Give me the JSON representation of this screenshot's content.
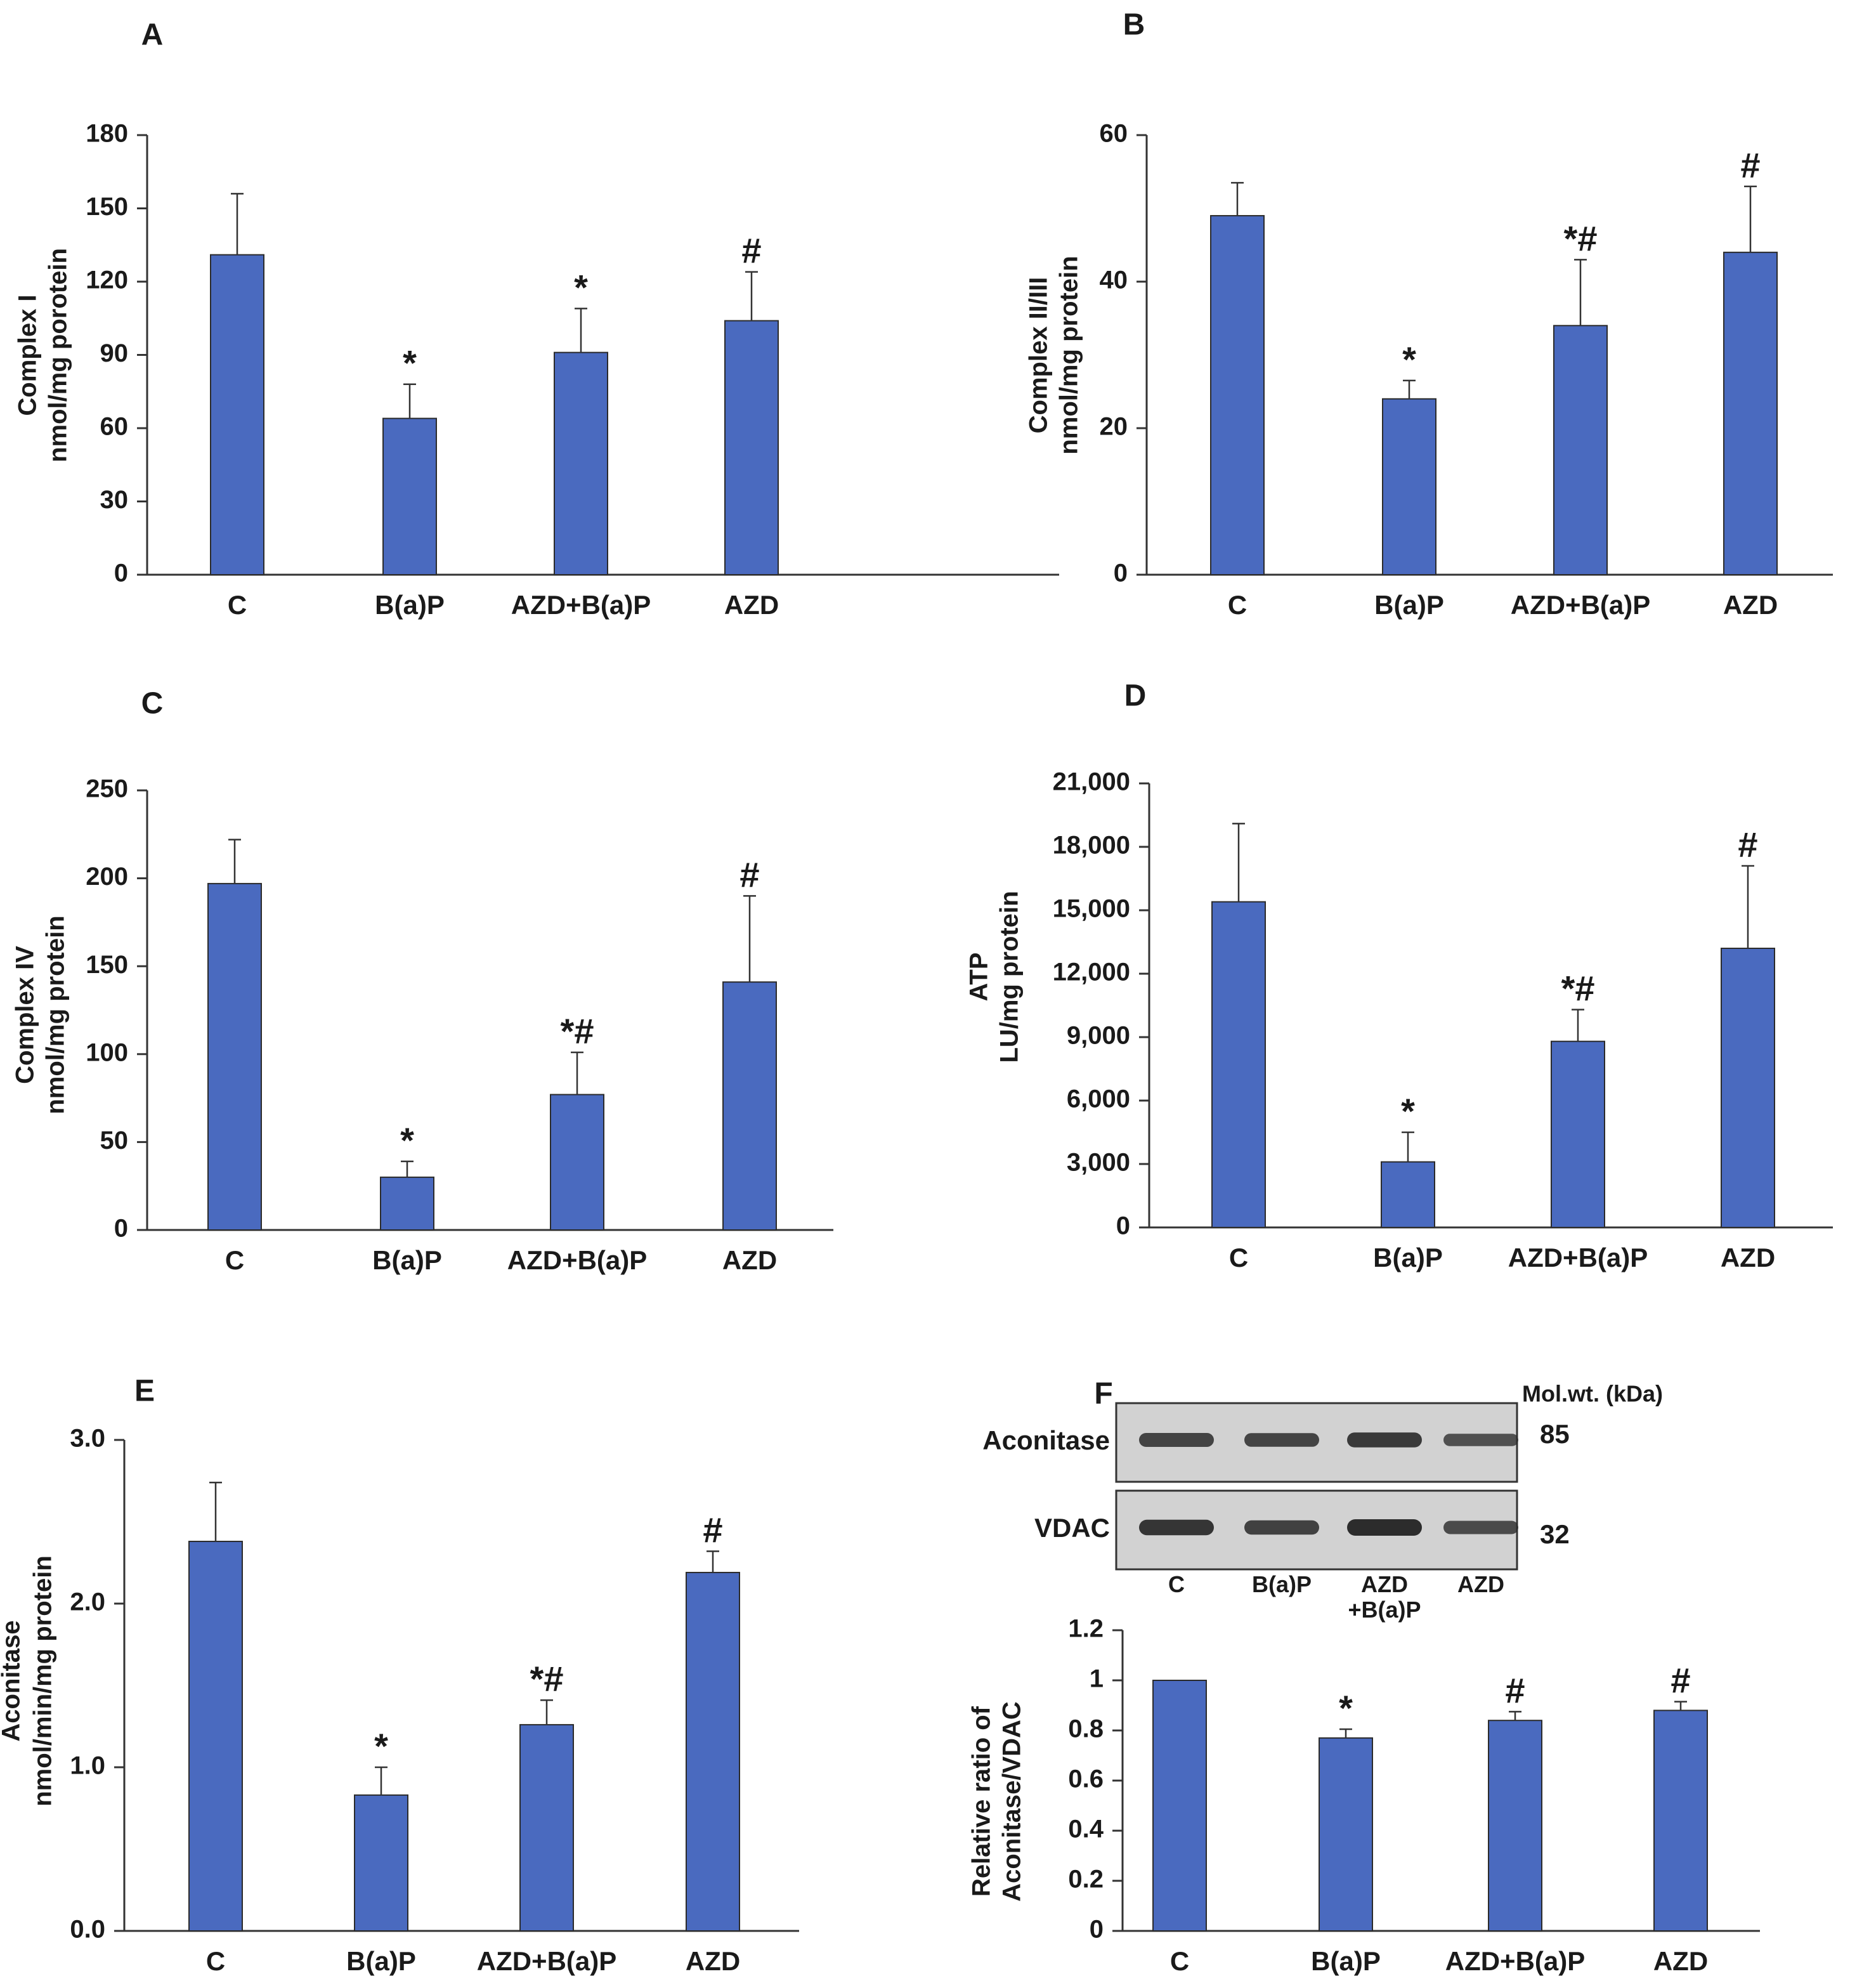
{
  "colors": {
    "bar": "#4a6abf",
    "bar_stroke": "#2b2b2b",
    "axis": "#333333",
    "text": "#1a1a1a",
    "blot_bg": "#d2d2d2",
    "band": "#2c2c2c"
  },
  "chart_data": [
    {
      "id": "A",
      "type": "bar",
      "panel_label": "A",
      "ylabel": [
        "Complex I",
        "nmol/mg porotein"
      ],
      "categories": [
        "C",
        "B(a)P",
        "AZD+B(a)P",
        "AZD"
      ],
      "values": [
        131,
        64,
        91,
        104
      ],
      "errors": [
        25,
        14,
        18,
        20
      ],
      "significance": [
        "",
        "*",
        "*",
        "#"
      ],
      "ylim": [
        0,
        180
      ],
      "yticks": [
        0,
        30,
        60,
        90,
        120,
        150,
        180
      ],
      "ytick_labels": [
        "0",
        "30",
        "60",
        "90",
        "120",
        "150",
        "180"
      ]
    },
    {
      "id": "B",
      "type": "bar",
      "panel_label": "B",
      "ylabel": [
        "Complex II/III",
        "nmol/mg protein"
      ],
      "categories": [
        "C",
        "B(a)P",
        "AZD+B(a)P",
        "AZD"
      ],
      "values": [
        49,
        24,
        34,
        44
      ],
      "errors": [
        4.5,
        2.5,
        9,
        9
      ],
      "significance": [
        "",
        "*",
        "*#",
        "#"
      ],
      "ylim": [
        0,
        60
      ],
      "yticks": [
        0,
        20,
        40,
        60
      ],
      "ytick_labels": [
        "0",
        "20",
        "40",
        "60"
      ]
    },
    {
      "id": "C",
      "type": "bar",
      "panel_label": "C",
      "ylabel": [
        "Complex IV",
        "nmol/mg protein"
      ],
      "categories": [
        "C",
        "B(a)P",
        "AZD+B(a)P",
        "AZD"
      ],
      "values": [
        197,
        30,
        77,
        141
      ],
      "errors": [
        25,
        9,
        24,
        49
      ],
      "significance": [
        "",
        "*",
        "*#",
        "#"
      ],
      "ylim": [
        0,
        250
      ],
      "yticks": [
        0,
        50,
        100,
        150,
        200,
        250
      ],
      "ytick_labels": [
        "0",
        "50",
        "100",
        "150",
        "200",
        "250"
      ]
    },
    {
      "id": "D",
      "type": "bar",
      "panel_label": "D",
      "ylabel": [
        "ATP",
        "LU/mg protein"
      ],
      "categories": [
        "C",
        "B(a)P",
        "AZD+B(a)P",
        "AZD"
      ],
      "values": [
        15400,
        3100,
        8800,
        13200
      ],
      "errors": [
        3700,
        1400,
        1500,
        3900
      ],
      "significance": [
        "",
        "*",
        "*#",
        "#"
      ],
      "ylim": [
        0,
        21000
      ],
      "yticks": [
        0,
        3000,
        6000,
        9000,
        12000,
        15000,
        18000,
        21000
      ],
      "ytick_labels": [
        "0",
        "3,000",
        "6,000",
        "9,000",
        "12,000",
        "15,000",
        "18,000",
        "21,000"
      ]
    },
    {
      "id": "E",
      "type": "bar",
      "panel_label": "E",
      "ylabel": [
        "Aconitase",
        "nmol/min/mg protein"
      ],
      "categories": [
        "C",
        "B(a)P",
        "AZD+B(a)P",
        "AZD"
      ],
      "values": [
        2.38,
        0.83,
        1.26,
        2.19
      ],
      "errors": [
        0.36,
        0.17,
        0.15,
        0.13
      ],
      "significance": [
        "",
        "*",
        "*#",
        "#"
      ],
      "ylim": [
        0,
        3
      ],
      "yticks": [
        0,
        1,
        2,
        3
      ],
      "ytick_labels": [
        "0.0",
        "1.0",
        "2.0",
        "3.0"
      ]
    },
    {
      "id": "F",
      "type": "bar",
      "panel_label": "F",
      "ylabel": [
        "Relative ratio of",
        "Aconitase/VDAC"
      ],
      "categories": [
        "C",
        "B(a)P",
        "AZD+B(a)P",
        "AZD"
      ],
      "values": [
        1.0,
        0.77,
        0.84,
        0.88
      ],
      "errors": [
        0,
        0.035,
        0.035,
        0.035
      ],
      "significance": [
        "",
        "*",
        "#",
        "#"
      ],
      "ylim": [
        0,
        1.2
      ],
      "yticks": [
        0,
        0.2,
        0.4,
        0.6,
        0.8,
        1.0,
        1.2
      ],
      "ytick_labels": [
        "0",
        "0.2",
        "0.4",
        "0.6",
        "0.8",
        "1",
        "1.2"
      ]
    }
  ],
  "western_blot": {
    "header": "Mol.wt. (kDa)",
    "rows": [
      {
        "label": "Aconitase",
        "mw": "85",
        "intensity": [
          0.75,
          0.72,
          0.85,
          0.6
        ]
      },
      {
        "label": "VDAC",
        "mw": "32",
        "intensity": [
          0.9,
          0.78,
          1.0,
          0.68
        ]
      }
    ],
    "lanes": [
      [
        "C"
      ],
      [
        "B(a)P"
      ],
      [
        "AZD",
        "+B(a)P"
      ],
      [
        "AZD"
      ]
    ]
  }
}
